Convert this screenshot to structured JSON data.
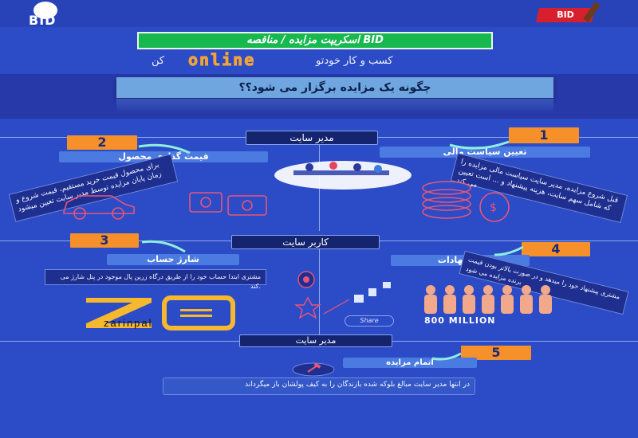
{
  "brand": {
    "logo_text": "BID",
    "tag_text": "BID"
  },
  "header": {
    "title": "اسکریپت مزایده / مناقصه BID",
    "line_left": "کسب و کار خودتو",
    "line_online": "online",
    "line_right": "کن"
  },
  "question": "چگونه یک مزایده برگزار می شود؟؟",
  "sections": {
    "admin_label_1": "مدیر سایت",
    "user_label": "کاربر سایت",
    "admin_label_2": "مدیر سایت"
  },
  "steps": [
    {
      "num": "1",
      "label": "تعیین سیاست مالی",
      "desc": "قبل شروع مزایده، مدیر سایت سیاست مالی مزایده را که شامل سهم سایت، هزینه پیشنهاد و ... است تعیین می کند"
    },
    {
      "num": "2",
      "label": "قیمت گذاری محصول",
      "desc": "برای محصول قیمت خرید مستقیم، قیمت شروع و زمان پایان مزایده توسط مدیر سایت تعیین میشود"
    },
    {
      "num": "3",
      "label": "شارژ حساب",
      "desc": "مشتری ابتدا حساب خود را از طریق درگاه زرین پال موجود در پنل شارژ می کند."
    },
    {
      "num": "4",
      "label": "پیشنهادات",
      "desc": "مشتری پیشنهاد خود را میدهد و در صورت بالاتر بودن قیمت برنده مزایده می شود"
    },
    {
      "num": "5",
      "label": "اتمام مزایده",
      "desc": "در انتها مدیر سایت مبالغ بلوکه شده بازندگان را به کیف پولشان باز میگرداند"
    }
  ],
  "zarinpal_text": "zarinpal",
  "share_text": "Share",
  "million_text": "800 MILLION",
  "icons": [
    "hammer-icon",
    "coins-icon",
    "car-icon",
    "money-icon",
    "people-icon",
    "star-icon",
    "wallet-icon",
    "gavel-icon"
  ],
  "colors": {
    "background": "#2c4bc6",
    "accent_orange": "#f5902b",
    "label_blue": "#4b7ae0",
    "title_green": "#17b84e",
    "icon_pink": "#e8557a"
  }
}
